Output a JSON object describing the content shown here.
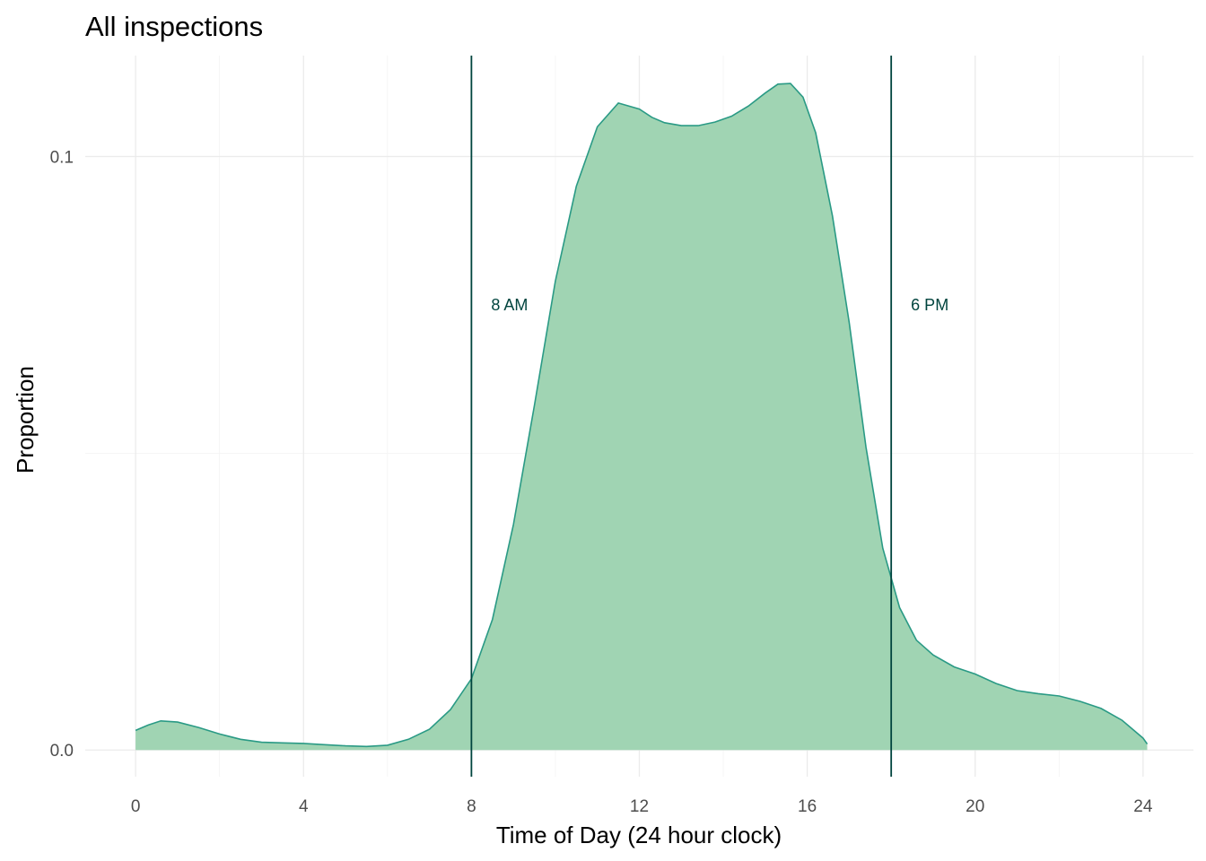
{
  "chart_data": {
    "type": "area",
    "title": "All inspections",
    "xlabel": "Time of Day (24 hour clock)",
    "ylabel": "Proportion",
    "xlim": [
      -1.2,
      25.2
    ],
    "ylim": [
      -0.0045,
      0.117
    ],
    "x_ticks": [
      0,
      4,
      8,
      12,
      16,
      20,
      24
    ],
    "x_tick_labels": [
      "0",
      "4",
      "8",
      "12",
      "16",
      "20",
      "24"
    ],
    "x_minor_ticks": [
      2,
      6,
      10,
      14,
      18,
      22
    ],
    "y_ticks": [
      0.0,
      0.1
    ],
    "y_tick_labels": [
      "0.0",
      "0.1"
    ],
    "y_minor_ticks": [
      0.05
    ],
    "grid": true,
    "legend": "none",
    "fill_color": "#a0d4b3",
    "line_color": "#2a9a85",
    "vline_color": "#00443e",
    "series": [
      {
        "x": [
          0,
          0.3,
          0.6,
          1.0,
          1.5,
          2.0,
          2.5,
          3.0,
          3.5,
          4.0,
          4.5,
          5.0,
          5.5,
          6.0,
          6.5,
          7.0,
          7.5,
          8.0,
          8.5,
          9.0,
          9.5,
          10.0,
          10.5,
          11.0,
          11.5,
          12.0,
          12.3,
          12.6,
          13.0,
          13.4,
          13.8,
          14.2,
          14.6,
          15.0,
          15.3,
          15.6,
          15.9,
          16.2,
          16.6,
          17.0,
          17.4,
          17.8,
          18.2,
          18.6,
          19.0,
          19.5,
          20.0,
          20.5,
          21.0,
          21.5,
          22.0,
          22.5,
          23.0,
          23.5,
          24.0,
          24.1
        ],
        "y": [
          0.0033,
          0.0042,
          0.0049,
          0.0047,
          0.0038,
          0.0027,
          0.0018,
          0.0013,
          0.0012,
          0.0011,
          0.0009,
          0.0007,
          0.0006,
          0.0008,
          0.0018,
          0.0035,
          0.0068,
          0.012,
          0.022,
          0.038,
          0.058,
          0.079,
          0.095,
          0.105,
          0.109,
          0.108,
          0.1066,
          0.1057,
          0.1052,
          0.1052,
          0.1058,
          0.1068,
          0.1085,
          0.1107,
          0.1122,
          0.1123,
          0.11,
          0.104,
          0.09,
          0.072,
          0.051,
          0.034,
          0.024,
          0.0185,
          0.016,
          0.014,
          0.0128,
          0.0112,
          0.01,
          0.0095,
          0.0091,
          0.0082,
          0.007,
          0.005,
          0.002,
          0.001
        ]
      }
    ],
    "annotations": [
      {
        "x": 8,
        "label": "8 AM",
        "label_y": 0.075
      },
      {
        "x": 18,
        "label": "6 PM",
        "label_y": 0.075
      }
    ]
  }
}
